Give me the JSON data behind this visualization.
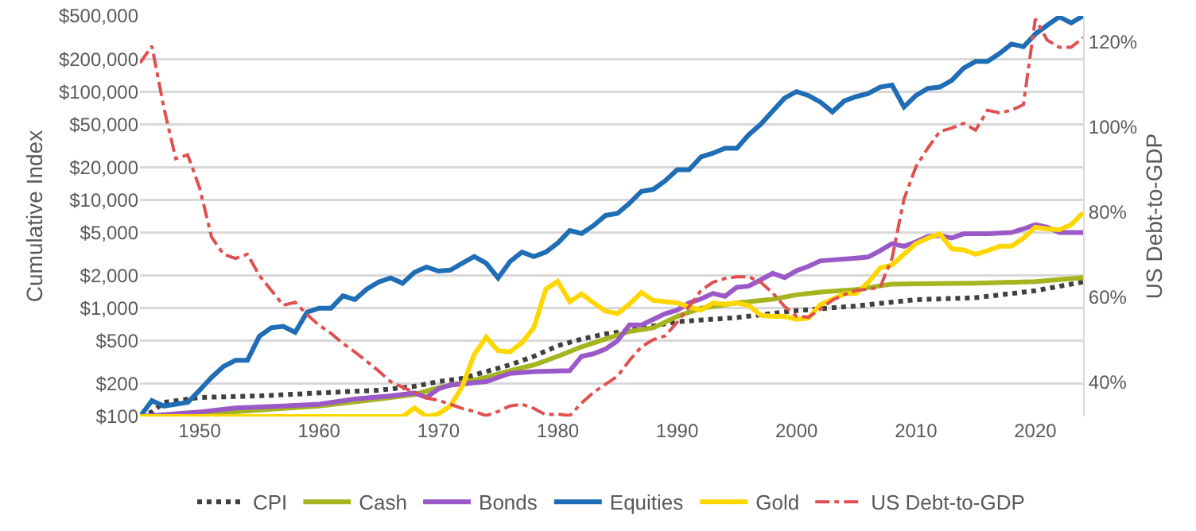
{
  "chart_data": {
    "type": "line",
    "xlabel": null,
    "ylabel": "Cumulative Index",
    "y2label": "US Debt-to-GDP",
    "xlim": [
      1945,
      2024
    ],
    "xticks": [
      1950,
      1960,
      1970,
      1980,
      1990,
      2000,
      2010,
      2020
    ],
    "ylim": [
      100,
      500000
    ],
    "yticks": [
      {
        "value": 100,
        "label": "$100"
      },
      {
        "value": 200,
        "label": "$200"
      },
      {
        "value": 500,
        "label": "$500"
      },
      {
        "value": 1000,
        "label": "$1,000"
      },
      {
        "value": 2000,
        "label": "$2,000"
      },
      {
        "value": 5000,
        "label": "$5,000"
      },
      {
        "value": 10000,
        "label": "$10,000"
      },
      {
        "value": 20000,
        "label": "$20,000"
      },
      {
        "value": 50000,
        "label": "$50,000"
      },
      {
        "value": 100000,
        "label": "$100,000"
      },
      {
        "value": 200000,
        "label": "$200,000"
      },
      {
        "value": 500000,
        "label": "$500,000"
      }
    ],
    "y2lim": [
      31.8,
      126.1
    ],
    "y2ticks": [
      {
        "value": 40,
        "label": "40%"
      },
      {
        "value": 60,
        "label": "60%"
      },
      {
        "value": 80,
        "label": "80%"
      },
      {
        "value": 100,
        "label": "100%"
      },
      {
        "value": 120,
        "label": "120%"
      }
    ],
    "log": "y",
    "grid": "y",
    "legend": "bottom",
    "marker": "none",
    "series": [
      {
        "name": "CPI",
        "color": "#404040",
        "line_style": "dotted",
        "x": [
          1945,
          1946,
          1947,
          1950,
          1955,
          1960,
          1965,
          1968,
          1970,
          1972,
          1974,
          1976,
          1978,
          1980,
          1982,
          1984,
          1985,
          1990,
          1995,
          2000,
          2005,
          2010,
          2015,
          2020,
          2024
        ],
        "values": [
          100,
          110,
          135,
          150,
          155,
          165,
          175,
          190,
          210,
          225,
          260,
          300,
          360,
          450,
          520,
          580,
          600,
          750,
          820,
          950,
          1050,
          1200,
          1250,
          1450,
          1750
        ]
      },
      {
        "name": "Cash",
        "color": "#a5b51f",
        "line_style": "solid",
        "x": [
          1945,
          1950,
          1955,
          1960,
          1965,
          1968,
          1970,
          1972,
          1974,
          1976,
          1978,
          1980,
          1982,
          1984,
          1986,
          1988,
          1990,
          1992,
          1995,
          1998,
          2000,
          2002,
          2005,
          2008,
          2010,
          2015,
          2020,
          2024
        ],
        "values": [
          100,
          105,
          115,
          125,
          145,
          160,
          185,
          205,
          230,
          265,
          300,
          360,
          440,
          520,
          610,
          660,
          840,
          1000,
          1120,
          1210,
          1330,
          1410,
          1490,
          1670,
          1680,
          1700,
          1760,
          1920
        ]
      },
      {
        "name": "Bonds",
        "color": "#9b59c8",
        "line_style": "solid",
        "x": [
          1945,
          1950,
          1953,
          1957,
          1960,
          1963,
          1966,
          1968,
          1969,
          1970,
          1971,
          1972,
          1974,
          1976,
          1978,
          1981,
          1982,
          1983,
          1984,
          1985,
          1986,
          1987,
          1988,
          1989,
          1990,
          1991,
          1992,
          1993,
          1994,
          1995,
          1996,
          1997,
          1998,
          1999,
          2000,
          2001,
          2002,
          2005,
          2006,
          2007,
          2008,
          2009,
          2010,
          2011,
          2012,
          2013,
          2014,
          2016,
          2018,
          2019,
          2020,
          2021,
          2022,
          2024
        ],
        "values": [
          100,
          110,
          120,
          125,
          130,
          145,
          155,
          165,
          150,
          180,
          195,
          200,
          210,
          250,
          260,
          265,
          360,
          380,
          420,
          500,
          700,
          700,
          790,
          890,
          960,
          1120,
          1220,
          1370,
          1290,
          1560,
          1600,
          1830,
          2100,
          1920,
          2220,
          2440,
          2740,
          2900,
          2970,
          3400,
          3950,
          3730,
          4100,
          4600,
          4700,
          4450,
          4870,
          4870,
          5000,
          5400,
          5900,
          5600,
          5000,
          5000
        ]
      },
      {
        "name": "Equities",
        "color": "#1f6db5",
        "line_style": "solid",
        "x": [
          1945,
          1946,
          1947,
          1949,
          1950,
          1951,
          1952,
          1953,
          1954,
          1955,
          1956,
          1957,
          1958,
          1959,
          1960,
          1961,
          1962,
          1963,
          1964,
          1965,
          1966,
          1967,
          1968,
          1969,
          1970,
          1971,
          1972,
          1973,
          1974,
          1975,
          1976,
          1977,
          1978,
          1979,
          1980,
          1981,
          1982,
          1983,
          1984,
          1985,
          1986,
          1987,
          1988,
          1989,
          1990,
          1991,
          1992,
          1993,
          1994,
          1995,
          1996,
          1997,
          1998,
          1999,
          2000,
          2001,
          2002,
          2003,
          2004,
          2005,
          2006,
          2007,
          2008,
          2009,
          2010,
          2011,
          2012,
          2013,
          2014,
          2015,
          2016,
          2017,
          2018,
          2019,
          2020,
          2021,
          2022,
          2023,
          2024
        ],
        "values": [
          100,
          140,
          125,
          135,
          175,
          230,
          290,
          330,
          330,
          550,
          660,
          680,
          600,
          920,
          1000,
          1000,
          1300,
          1200,
          1500,
          1750,
          1900,
          1700,
          2150,
          2400,
          2200,
          2250,
          2600,
          3000,
          2600,
          1900,
          2700,
          3300,
          3000,
          3300,
          4000,
          5200,
          4900,
          5800,
          7200,
          7500,
          9300,
          12000,
          12500,
          15000,
          19000,
          19000,
          25000,
          27000,
          30000,
          30000,
          40000,
          50000,
          66000,
          87000,
          100000,
          92000,
          80000,
          65000,
          82000,
          90000,
          96000,
          110000,
          115000,
          72000,
          92000,
          107000,
          110000,
          127000,
          165000,
          190000,
          190000,
          225000,
          275000,
          260000,
          340000,
          410000,
          490000,
          430000,
          500000
        ]
      },
      {
        "name": "Gold",
        "color": "#ffd700",
        "line_style": "solid",
        "x": [
          1945,
          1967,
          1968,
          1969,
          1970,
          1971,
          1972,
          1973,
          1974,
          1975,
          1976,
          1977,
          1978,
          1979,
          1980,
          1981,
          1982,
          1983,
          1984,
          1985,
          1986,
          1987,
          1988,
          1989,
          1990,
          1991,
          1992,
          1993,
          1994,
          1995,
          1996,
          1997,
          1998,
          1999,
          2000,
          2001,
          2002,
          2003,
          2004,
          2005,
          2006,
          2007,
          2008,
          2009,
          2010,
          2011,
          2012,
          2013,
          2014,
          2015,
          2016,
          2017,
          2018,
          2019,
          2020,
          2021,
          2022,
          2023,
          2024
        ],
        "values": [
          100,
          100,
          120,
          100,
          106,
          125,
          190,
          375,
          540,
          405,
          395,
          480,
          665,
          1500,
          1770,
          1150,
          1360,
          1120,
          940,
          890,
          1090,
          1400,
          1180,
          1150,
          1120,
          1030,
          960,
          1120,
          1090,
          1120,
          1060,
          860,
          840,
          840,
          790,
          810,
          1080,
          1210,
          1360,
          1370,
          1730,
          2360,
          2500,
          3150,
          3950,
          4440,
          4870,
          3530,
          3450,
          3150,
          3400,
          3730,
          3730,
          4440,
          5600,
          5400,
          5300,
          5900,
          7600
        ]
      },
      {
        "name": "US Debt-to-GDP",
        "color": "#e05050",
        "line_style": "dashdot",
        "axis": "y2",
        "x": [
          1945,
          1946,
          1947,
          1948,
          1949,
          1950,
          1951,
          1952,
          1953,
          1954,
          1955,
          1956,
          1957,
          1958,
          1959,
          1960,
          1961,
          1962,
          1963,
          1964,
          1965,
          1966,
          1967,
          1968,
          1969,
          1970,
          1971,
          1972,
          1973,
          1974,
          1975,
          1976,
          1977,
          1978,
          1979,
          1980,
          1981,
          1982,
          1983,
          1984,
          1985,
          1986,
          1987,
          1988,
          1989,
          1990,
          1991,
          1992,
          1993,
          1994,
          1995,
          1996,
          1997,
          1998,
          1999,
          2000,
          2001,
          2002,
          2003,
          2004,
          2005,
          2006,
          2007,
          2008,
          2009,
          2010,
          2011,
          2012,
          2013,
          2014,
          2015,
          2016,
          2017,
          2018,
          2019,
          2020,
          2021,
          2022,
          2023,
          2024
        ],
        "values": [
          115,
          119,
          104.5,
          92.5,
          93.4,
          85.6,
          74,
          70,
          69,
          70,
          65,
          61.5,
          58,
          58.7,
          55.8,
          53.3,
          51.4,
          49,
          47,
          44.8,
          42.5,
          40,
          38.7,
          37.5,
          36.2,
          35.6,
          34.7,
          33.7,
          33,
          32,
          33,
          34.3,
          34.7,
          33.7,
          32.2,
          32.4,
          32,
          35,
          37.5,
          39.4,
          41.3,
          45,
          48.2,
          49.9,
          50.8,
          54,
          57.7,
          61.5,
          63.4,
          64.3,
          64.7,
          64.7,
          63.4,
          60.9,
          57.7,
          55.4,
          55.2,
          57.1,
          59.2,
          60.5,
          61.5,
          61.8,
          62.2,
          69.1,
          83,
          90.6,
          95,
          98.9,
          99.7,
          100.8,
          99.2,
          103.9,
          103.3,
          103.9,
          105.2,
          125.4,
          120.4,
          118.7,
          118.7,
          121
        ]
      }
    ]
  }
}
